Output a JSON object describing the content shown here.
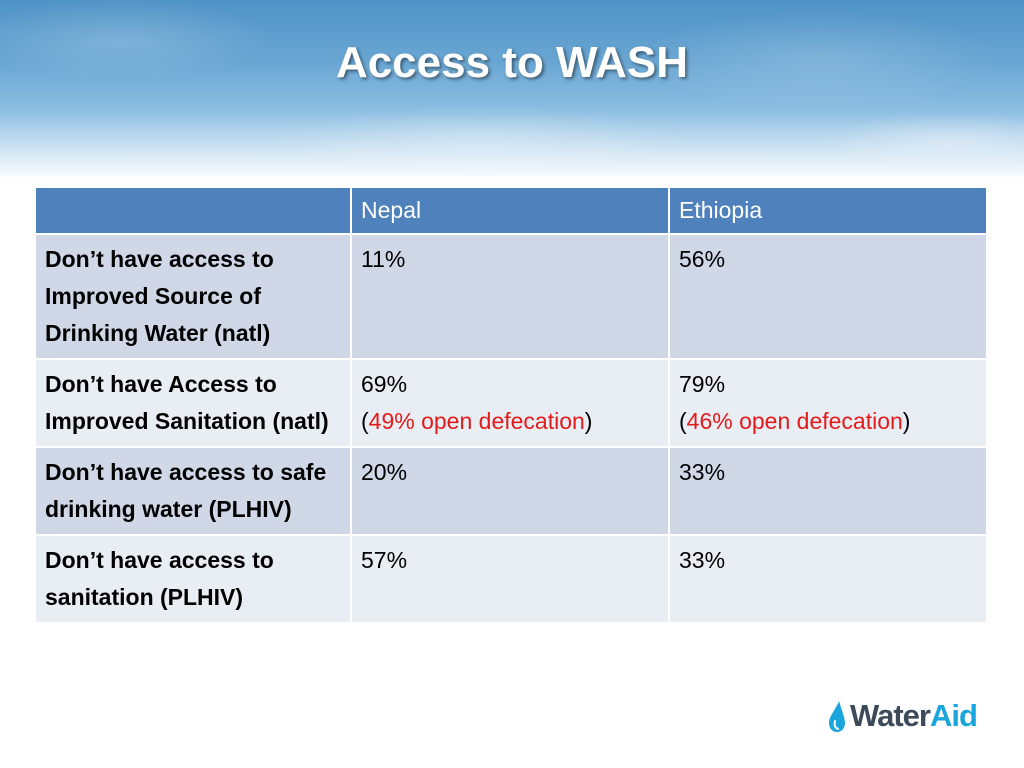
{
  "slide": {
    "title": "Access to WASH"
  },
  "table": {
    "headers": [
      "",
      "Nepal",
      "Ethiopia"
    ],
    "rows": [
      {
        "label": "Don’t have access to Improved Source of Drinking Water (natl)",
        "nepal": {
          "value": "11%"
        },
        "ethiopia": {
          "value": "56%"
        }
      },
      {
        "label": "Don’t have Access to Improved Sanitation (natl)",
        "nepal": {
          "value": "69%",
          "open_paren": "(",
          "note": "49% open defecation",
          "close_paren": ")"
        },
        "ethiopia": {
          "value": "79%",
          "open_paren": "(",
          "note": "46% open defecation",
          "close_paren": ")"
        }
      },
      {
        "label": "Don’t have access to safe drinking water (PLHIV)",
        "nepal": {
          "value": "20%"
        },
        "ethiopia": {
          "value": "33%"
        }
      },
      {
        "label": "Don’t have access to sanitation (PLHIV)",
        "nepal": {
          "value": "57%"
        },
        "ethiopia": {
          "value": "33%"
        }
      }
    ]
  },
  "logo": {
    "part1": "Water",
    "part2": "Aid"
  },
  "colors": {
    "header_bg": "#4f81bd",
    "row_odd": "#d0d8e8",
    "row_even": "#e9edf4",
    "highlight_red": "#e31b1b"
  }
}
